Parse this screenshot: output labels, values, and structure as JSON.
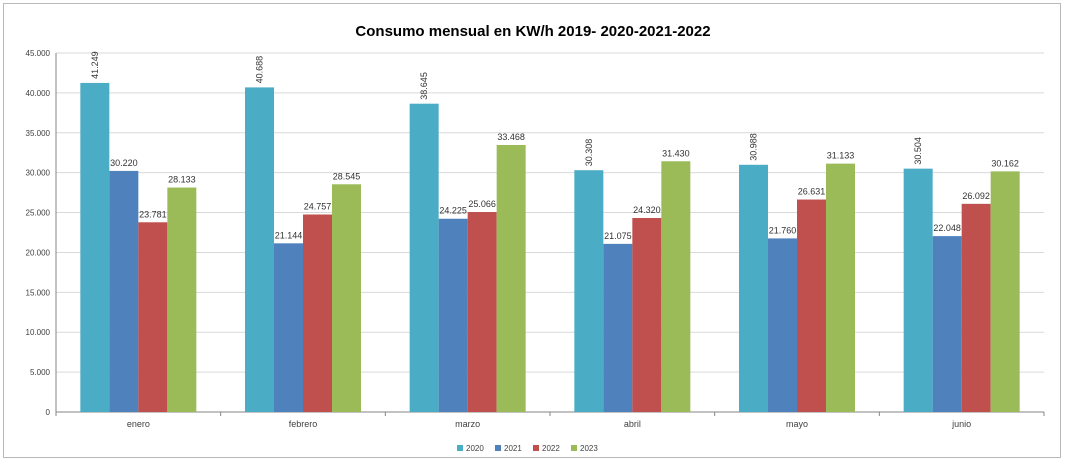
{
  "chart_data": {
    "type": "bar",
    "title": "Consumo mensual en KW/h 2019- 2020-2021-2022",
    "xlabel": "",
    "ylabel": "",
    "categories": [
      "enero",
      "febrero",
      "marzo",
      "abril",
      "mayo",
      "junio"
    ],
    "ylim": [
      0,
      45000
    ],
    "y_ticks": [
      "0",
      "5.000",
      "10.000",
      "15.000",
      "20.000",
      "25.000",
      "30.000",
      "35.000",
      "40.000",
      "45.000"
    ],
    "grid": true,
    "legend_position": "bottom",
    "series": [
      {
        "name": "2020",
        "color": "#4bacc6",
        "values": [
          41249,
          40688,
          38645,
          30308,
          30988,
          30504
        ],
        "labels": [
          "41.249",
          "40.688",
          "38.645",
          "30.308",
          "30.988",
          "30.504"
        ]
      },
      {
        "name": "2021",
        "color": "#4f81bd",
        "values": [
          30220,
          21144,
          24225,
          21075,
          21760,
          22048
        ],
        "labels": [
          "30.220",
          "21.144",
          "24.225",
          "21.075",
          "21.760",
          "22.048"
        ]
      },
      {
        "name": "2022",
        "color": "#c0504d",
        "values": [
          23781,
          24757,
          25066,
          24320,
          26631,
          26092
        ],
        "labels": [
          "23.781",
          "24.757",
          "25.066",
          "24.320",
          "26.631",
          "26.092"
        ]
      },
      {
        "name": "2023",
        "color": "#9bbb59",
        "values": [
          28133,
          28545,
          33468,
          31430,
          31133,
          30162
        ],
        "labels": [
          "28.133",
          "28.545",
          "33.468",
          "31.430",
          "31.133",
          "30.162"
        ]
      }
    ]
  }
}
